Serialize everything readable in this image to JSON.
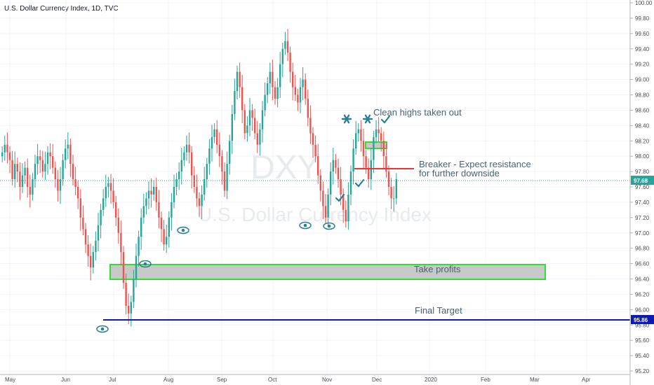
{
  "header": {
    "title": "U.S. Dollar Currency Index, 1D, TVC"
  },
  "watermark": {
    "symbol": "DXY",
    "name": "U.S. Dollar Currency Index"
  },
  "colors": {
    "up": "#26a69a",
    "down": "#ef5350",
    "target": "#0b1ab0",
    "zone_border": "#33dd33",
    "zone_fill": "#c8c8c8",
    "breaker": "#ee3333",
    "icon": "#2a7f95"
  },
  "chart_data": {
    "type": "candlestick",
    "y_range": [
      95.2,
      100.0
    ],
    "y_ticks": [
      "95.20",
      "95.40",
      "95.60",
      "95.80",
      "96.00",
      "96.20",
      "96.40",
      "96.60",
      "96.80",
      "97.00",
      "97.20",
      "97.40",
      "97.60",
      "97.80",
      "98.00",
      "98.20",
      "98.40",
      "98.60",
      "98.80",
      "99.00",
      "99.20",
      "99.40",
      "99.60",
      "99.80",
      "100.00"
    ],
    "x_labels": [
      "May",
      "Jun",
      "Jul",
      "Aug",
      "Sep",
      "Oct",
      "Nov",
      "Dec",
      "2020",
      "Feb",
      "Mar",
      "Apr"
    ],
    "price_label": "97.68",
    "target_label": "95.86",
    "closes": [
      98.05,
      98.15,
      98.05,
      97.95,
      97.7,
      97.9,
      97.8,
      97.6,
      97.75,
      97.85,
      97.6,
      97.5,
      97.7,
      97.9,
      98.0,
      97.95,
      97.8,
      97.9,
      98.05,
      98.0,
      97.85,
      97.7,
      97.55,
      97.7,
      97.95,
      98.1,
      98.15,
      97.9,
      97.7,
      97.6,
      97.45,
      97.2,
      97.05,
      96.85,
      96.7,
      96.55,
      96.75,
      96.9,
      97.1,
      97.3,
      97.45,
      97.6,
      97.65,
      97.55,
      97.4,
      97.2,
      97.0,
      96.75,
      96.35,
      96.05,
      95.95,
      96.1,
      96.4,
      96.7,
      96.95,
      97.2,
      97.35,
      97.45,
      97.55,
      97.5,
      97.6,
      97.4,
      97.2,
      97.05,
      96.85,
      96.95,
      97.2,
      97.4,
      97.6,
      97.7,
      97.8,
      97.95,
      98.05,
      98.15,
      98.05,
      97.75,
      97.6,
      97.45,
      97.35,
      97.5,
      97.7,
      97.9,
      98.1,
      98.25,
      98.35,
      98.15,
      98.0,
      97.8,
      97.55,
      97.9,
      98.2,
      98.55,
      98.85,
      99.1,
      98.9,
      98.6,
      98.3,
      98.4,
      98.6,
      98.5,
      98.3,
      98.15,
      98.35,
      98.6,
      98.8,
      98.95,
      99.1,
      98.9,
      98.75,
      98.9,
      99.2,
      99.4,
      99.5,
      99.35,
      99.1,
      98.9,
      98.8,
      98.7,
      98.9,
      99.0,
      98.75,
      98.5,
      98.3,
      98.15,
      98.0,
      97.75,
      97.55,
      97.35,
      97.2,
      97.5,
      97.8,
      97.95,
      97.85,
      97.7,
      97.5,
      97.3,
      97.15,
      97.5,
      97.8,
      98.1,
      98.3,
      98.35,
      98.2,
      98.0,
      97.85,
      97.7,
      97.95,
      98.25,
      98.35,
      98.3,
      98.2,
      98.0,
      97.8,
      97.6,
      97.45,
      97.45,
      97.7
    ]
  },
  "annotations": {
    "clean_highs": "Clean highs taken out",
    "breaker_line1": "Breaker - Expect resistance",
    "breaker_line2": "for further downside",
    "take_profits": "Take profits",
    "final_target": "Final Target"
  },
  "icons": {
    "eye": "eye-icon",
    "check": "check-icon",
    "star": "asterisk-icon"
  }
}
